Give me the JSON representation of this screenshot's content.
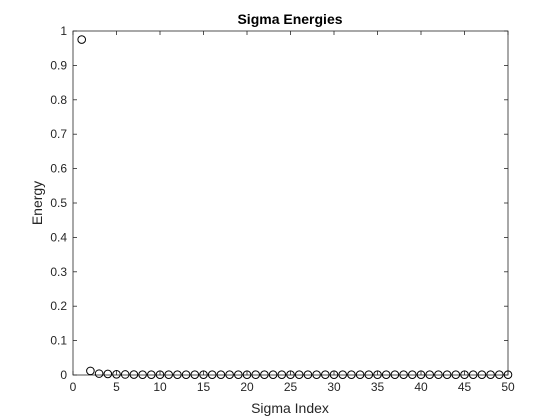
{
  "chart_data": {
    "type": "scatter",
    "title": "Sigma Energies",
    "xlabel": "Sigma Index",
    "ylabel": "Energy",
    "xlim": [
      0,
      50
    ],
    "ylim": [
      0,
      1
    ],
    "xticks": [
      "0",
      "5",
      "10",
      "15",
      "20",
      "25",
      "30",
      "35",
      "40",
      "45",
      "50"
    ],
    "yticks": [
      "0",
      "0.1",
      "0.2",
      "0.3",
      "0.4",
      "0.5",
      "0.6",
      "0.7",
      "0.8",
      "0.9",
      "1"
    ],
    "grid": false,
    "marker": "open-circle",
    "marker_color": "#000000",
    "x": [
      1,
      2,
      3,
      4,
      5,
      6,
      7,
      8,
      9,
      10,
      11,
      12,
      13,
      14,
      15,
      16,
      17,
      18,
      19,
      20,
      21,
      22,
      23,
      24,
      25,
      26,
      27,
      28,
      29,
      30,
      31,
      32,
      33,
      34,
      35,
      36,
      37,
      38,
      39,
      40,
      41,
      42,
      43,
      44,
      45,
      46,
      47,
      48,
      49,
      50
    ],
    "y": [
      0.975,
      0.012,
      0.004,
      0.003,
      0.002,
      0.0015,
      0.0012,
      0.001,
      0.001,
      0.001,
      0.001,
      0.001,
      0.001,
      0.001,
      0.001,
      0.001,
      0.001,
      0.001,
      0.001,
      0.001,
      0.001,
      0.001,
      0.001,
      0.001,
      0.001,
      0.001,
      0.001,
      0.001,
      0.001,
      0.001,
      0.001,
      0.001,
      0.001,
      0.001,
      0.001,
      0.001,
      0.001,
      0.001,
      0.001,
      0.001,
      0.001,
      0.001,
      0.001,
      0.001,
      0.001,
      0.001,
      0.001,
      0.001,
      0.001,
      0.001
    ]
  }
}
